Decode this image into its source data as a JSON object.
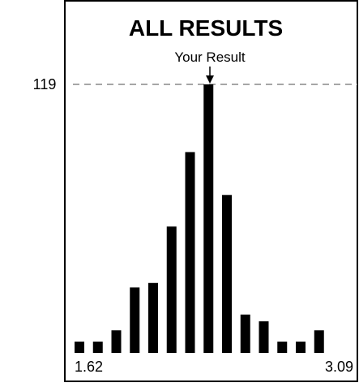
{
  "chart_data": {
    "type": "bar",
    "title": "ALL RESULTS",
    "annotation": "Your Result",
    "reference_line_label": "119",
    "reference_value": 119,
    "x_range_labels": [
      "1.62",
      "3.09"
    ],
    "ylim": [
      0,
      119
    ],
    "grid": false,
    "bar_color": "#000000",
    "highlight_index": 7,
    "values": [
      5,
      5,
      10,
      29,
      31,
      56,
      89,
      119,
      70,
      17,
      14,
      5,
      5,
      10
    ]
  }
}
